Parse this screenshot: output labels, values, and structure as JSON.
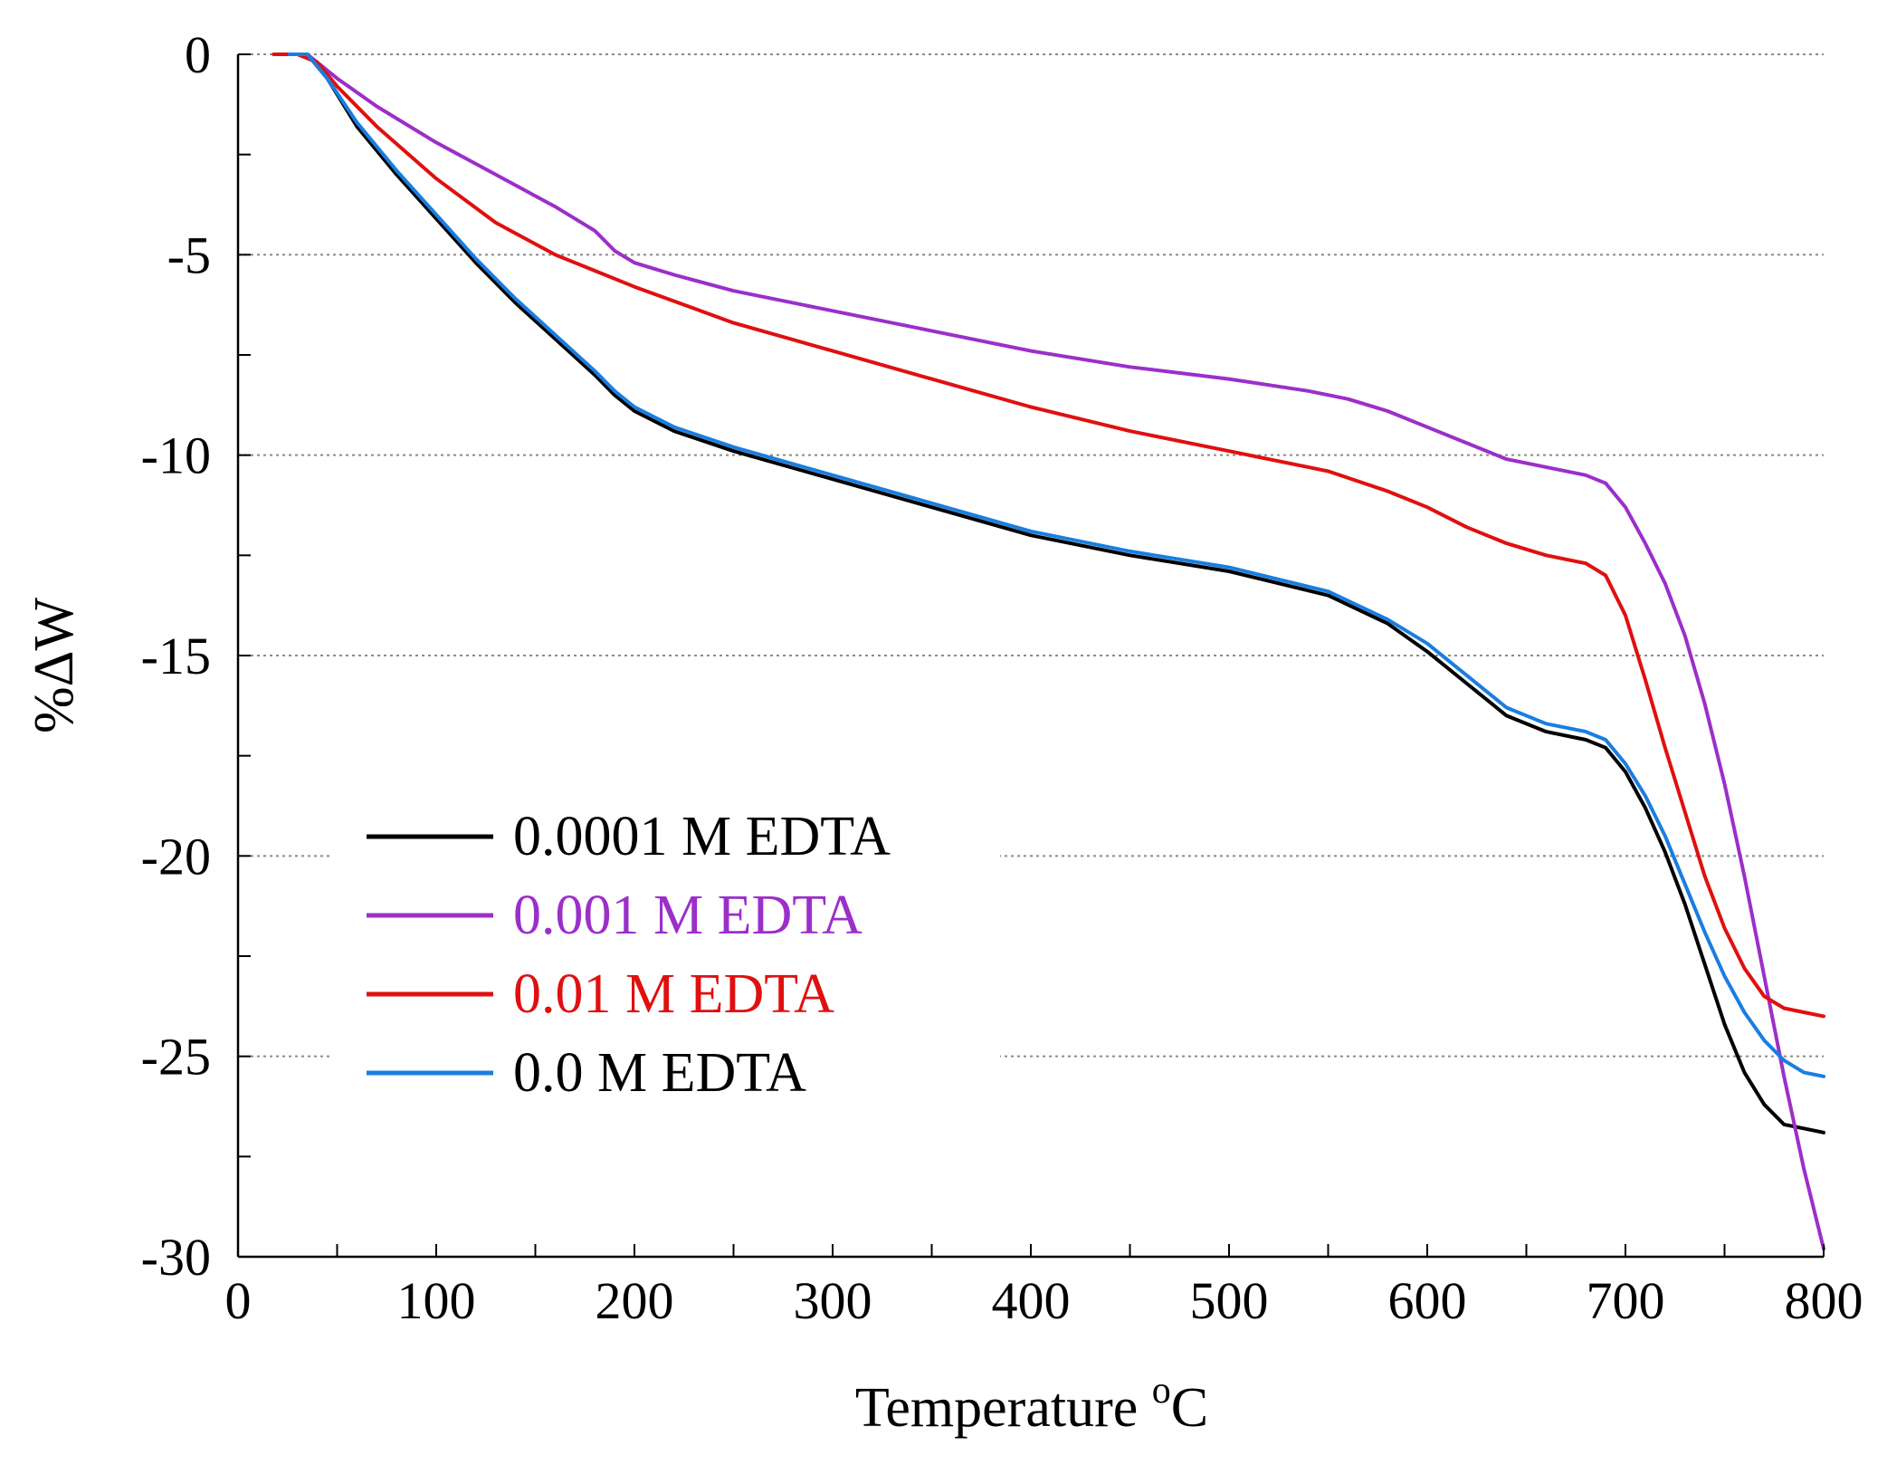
{
  "chart_data": {
    "type": "line",
    "title": "",
    "xlabel": "Temperature",
    "xlabel_unit_prefix": "o",
    "xlabel_unit": "C",
    "ylabel": "%ΔW",
    "xlim": [
      0,
      800
    ],
    "ylim": [
      -30,
      0
    ],
    "xticks": [
      0,
      100,
      200,
      300,
      400,
      500,
      600,
      700,
      800
    ],
    "yticks": [
      0,
      -5,
      -10,
      -15,
      -20,
      -25,
      -30
    ],
    "grid": "horizontal-dotted",
    "legend_position": "lower-left",
    "series": [
      {
        "name": "0.0001 M EDTA",
        "color": "#000000",
        "x": [
          28,
          35,
          45,
          60,
          80,
          100,
          120,
          140,
          160,
          180,
          190,
          200,
          220,
          250,
          300,
          350,
          400,
          450,
          500,
          550,
          580,
          600,
          620,
          640,
          660,
          680,
          690,
          700,
          710,
          720,
          730,
          740,
          750,
          760,
          770,
          780,
          790,
          800
        ],
        "y": [
          0,
          0,
          -0.6,
          -1.8,
          -3.0,
          -4.1,
          -5.2,
          -6.2,
          -7.1,
          -8.0,
          -8.5,
          -8.9,
          -9.4,
          -9.9,
          -10.6,
          -11.3,
          -12.0,
          -12.5,
          -12.9,
          -13.5,
          -14.2,
          -14.9,
          -15.7,
          -16.5,
          -16.9,
          -17.1,
          -17.3,
          -17.9,
          -18.8,
          -19.9,
          -21.2,
          -22.7,
          -24.2,
          -25.4,
          -26.2,
          -26.7,
          -26.8,
          -26.9
        ]
      },
      {
        "name": "0.001 M EDTA",
        "color": "#9b2fc9",
        "x": [
          28,
          35,
          50,
          70,
          100,
          130,
          160,
          180,
          190,
          200,
          220,
          250,
          300,
          350,
          400,
          450,
          500,
          540,
          560,
          580,
          600,
          620,
          640,
          660,
          680,
          690,
          700,
          710,
          720,
          730,
          740,
          750,
          760,
          770,
          780,
          790,
          800
        ],
        "y": [
          0,
          0,
          -0.6,
          -1.3,
          -2.2,
          -3.0,
          -3.8,
          -4.4,
          -4.9,
          -5.2,
          -5.5,
          -5.9,
          -6.4,
          -6.9,
          -7.4,
          -7.8,
          -8.1,
          -8.4,
          -8.6,
          -8.9,
          -9.3,
          -9.7,
          -10.1,
          -10.3,
          -10.5,
          -10.7,
          -11.3,
          -12.2,
          -13.2,
          -14.5,
          -16.2,
          -18.2,
          -20.5,
          -23.0,
          -25.5,
          -27.8,
          -29.8
        ]
      },
      {
        "name": "0.01 M EDTA",
        "color": "#e01010",
        "x": [
          18,
          30,
          40,
          50,
          70,
          100,
          130,
          160,
          180,
          200,
          250,
          300,
          350,
          400,
          450,
          500,
          550,
          580,
          600,
          620,
          640,
          660,
          680,
          690,
          700,
          710,
          720,
          730,
          740,
          750,
          760,
          770,
          780,
          790,
          800
        ],
        "y": [
          0,
          0,
          -0.2,
          -0.8,
          -1.8,
          -3.1,
          -4.2,
          -5.0,
          -5.4,
          -5.8,
          -6.7,
          -7.4,
          -8.1,
          -8.8,
          -9.4,
          -9.9,
          -10.4,
          -10.9,
          -11.3,
          -11.8,
          -12.2,
          -12.5,
          -12.7,
          -13.0,
          -14.0,
          -15.6,
          -17.3,
          -18.9,
          -20.5,
          -21.8,
          -22.8,
          -23.5,
          -23.8,
          -23.9,
          -24.0
        ]
      },
      {
        "name": "0.0 M EDTA",
        "color": "#1a7ee0",
        "x": [
          26,
          35,
          45,
          60,
          80,
          100,
          120,
          140,
          160,
          180,
          190,
          200,
          220,
          250,
          300,
          350,
          400,
          450,
          500,
          550,
          580,
          600,
          620,
          640,
          660,
          680,
          690,
          700,
          710,
          720,
          730,
          740,
          750,
          760,
          770,
          780,
          790,
          800
        ],
        "y": [
          0,
          0,
          -0.6,
          -1.7,
          -2.9,
          -4.0,
          -5.1,
          -6.1,
          -7.0,
          -7.9,
          -8.4,
          -8.8,
          -9.3,
          -9.8,
          -10.5,
          -11.2,
          -11.9,
          -12.4,
          -12.8,
          -13.4,
          -14.1,
          -14.7,
          -15.5,
          -16.3,
          -16.7,
          -16.9,
          -17.1,
          -17.7,
          -18.5,
          -19.5,
          -20.7,
          -21.9,
          -23.0,
          -23.9,
          -24.6,
          -25.1,
          -25.4,
          -25.5
        ]
      }
    ]
  }
}
